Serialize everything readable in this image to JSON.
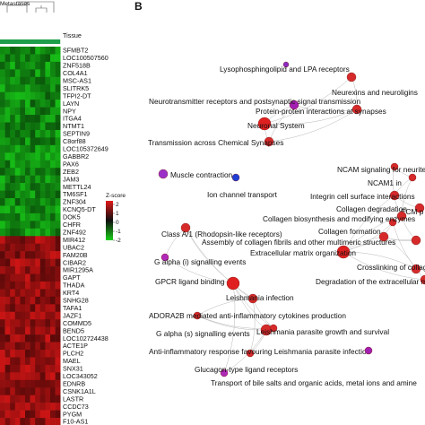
{
  "heatmap": {
    "top_label": "Metastases",
    "tissue_label": "Tissue",
    "genes": [
      "SFMBT2",
      "LOC100507560",
      "ZNF518B",
      "COL4A1",
      "MSC-AS1",
      "SLITRK5",
      "TFPI2-DT",
      "LAYN",
      "NPY",
      "ITGA4",
      "NTMT1",
      "SEPTIN9",
      "C8orf88",
      "LOC105372649",
      "GABBR2",
      "PAX6",
      "ZEB2",
      "JAM3",
      "METTL24",
      "TM6SF1",
      "ZNF304",
      "KCNQ5-DT",
      "DOK5",
      "CHFR",
      "ZNF492",
      "MIR412",
      "UBAC2",
      "FAM20B",
      "CIBAR2",
      "MIR1295A",
      "GAPT",
      "THADA",
      "KRT4",
      "SNHG28",
      "TAFA1",
      "JAZF1",
      "COMMD5",
      "BEND5",
      "LOC102724438",
      "ACTE1P",
      "PLCH2",
      "MAEL",
      "SNX31",
      "LOC343052",
      "EDNRB",
      "CSNK1A1L",
      "LASTR",
      "CCDC73",
      "PYGM",
      "F10-AS1"
    ],
    "green_rows": 25,
    "red_rows": 25,
    "columns": 12,
    "legend": {
      "title": "Z-score",
      "ticks": [
        "2",
        "1",
        "0",
        "-1",
        "-2"
      ]
    },
    "colors": {
      "high": "#c41a1a",
      "low": "#18b418",
      "mid": "#111111"
    }
  },
  "network": {
    "panel_label": "B",
    "nodes": [
      {
        "id": "lysophospho",
        "label": "Lysophosphingolipid and LPA receptors",
        "color": "#8a2bbf"
      },
      {
        "id": "neurexins",
        "label": "Neurexins and neuroligins",
        "color": "#d62a2a"
      },
      {
        "id": "neuro_rec",
        "label": "Neurotransmitter receptors and postsynaptic signal transmission",
        "color": "#a21fb0"
      },
      {
        "id": "ppi",
        "label": "Protein-protein interactions at synapses",
        "color": "#d62a2a"
      },
      {
        "id": "neuronal",
        "label": "Neuronal System",
        "color": "#e02020"
      },
      {
        "id": "transmission",
        "label": "Transmission across Chemical Synapses",
        "color": "#d62a2a"
      },
      {
        "id": "muscle",
        "label": "Muscle contraction",
        "color": "#9b30c8"
      },
      {
        "id": "ion",
        "label": "Ion channel transport",
        "color": "#1f3fd4"
      },
      {
        "id": "ncam_neurite",
        "label": "NCAM signaling for neurite ou",
        "color": "#d62a2a"
      },
      {
        "id": "ncam1",
        "label": "NCAM1 in",
        "color": "#d62a2a"
      },
      {
        "id": "integrin",
        "label": "Integrin cell surface interactions",
        "color": "#d62a2a"
      },
      {
        "id": "ecm",
        "label": "ECM p",
        "color": "#d62a2a"
      },
      {
        "id": "collagen_degr",
        "label": "Collagen degradation",
        "color": "#d62a2a"
      },
      {
        "id": "collagen_bio",
        "label": "Collagen biosynthesis and modifying enzymes",
        "color": "#d62a2a"
      },
      {
        "id": "classa",
        "label": "Class A/1 (Rhodopsin-like receptors)",
        "color": "#d62a2a"
      },
      {
        "id": "collagen_form",
        "label": "Collagen formation",
        "color": "#d62a2a"
      },
      {
        "id": "assembly",
        "label": "Assembly of collagen fibrils and other multimeric structures",
        "color": "#d62a2a"
      },
      {
        "id": "ecm_org",
        "label": "Extracellular matrix organization",
        "color": "#e02020"
      },
      {
        "id": "galpha_i",
        "label": "G alpha (i) signalling events",
        "color": "#b02ab8"
      },
      {
        "id": "crosslink",
        "label": "Crosslinking of collagen",
        "color": "#d62a2a"
      },
      {
        "id": "degr_ecm",
        "label": "Degradation of the extracellular m",
        "color": "#d62a2a"
      },
      {
        "id": "gpcr",
        "label": "GPCR ligand binding",
        "color": "#e02020"
      },
      {
        "id": "leish",
        "label": "Leishmania infection",
        "color": "#d62a2a"
      },
      {
        "id": "adora",
        "label": "ADORA2B mediated anti-inflammatory cytokines production",
        "color": "#d62a2a"
      },
      {
        "id": "galpha_s",
        "label": "G alpha (s) signalling events",
        "color": "#d62a2a"
      },
      {
        "id": "leish_growth",
        "label": "Leishmania parasite growth and survival",
        "color": "#d62a2a"
      },
      {
        "id": "antiinf",
        "label": "Anti-inflammatory response favouring Leishmania parasite infection",
        "color": "#d62a2a"
      },
      {
        "id": "glucagon",
        "label": "Glucagon-type ligand receptors",
        "color": "#b02ab8"
      },
      {
        "id": "bile",
        "label": "Transport of bile salts and organic acids, metal ions and amine",
        "color": "#a21fb0"
      }
    ]
  }
}
